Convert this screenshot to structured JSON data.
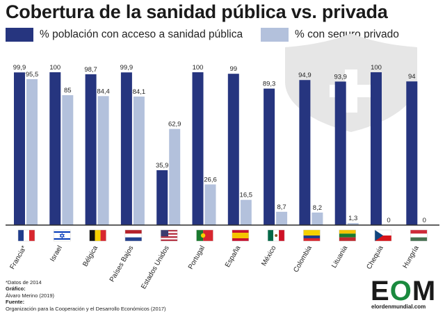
{
  "title": "Cobertura de la sanidad pública vs. privada",
  "legend": {
    "public_label": "% población con acceso a sanidad pública",
    "private_label": "% con seguro privado"
  },
  "colors": {
    "public": "#26357f",
    "private": "#b3c1dc",
    "baseline": "#2b2b2b",
    "shield": "#e6e6e6",
    "brand_green": "#1a8a3e"
  },
  "notes": {
    "footnote": "*Datos de 2014",
    "grafico_label": "Gráfico:",
    "grafico_value": "Álvaro Merino (2019)",
    "fuente_label": "Fuente:",
    "fuente_value": "Organización para la Cooperación y el Desarrollo Económicos (2017)"
  },
  "logo": {
    "text_e": "E",
    "text_o": "O",
    "text_m": "M",
    "url": "elordenmundial.com"
  },
  "background_icon": "shield-plus-icon",
  "chart_data": {
    "type": "bar",
    "categories": [
      "Francia*",
      "Israel",
      "Bélgica",
      "Países Bajos",
      "Estados Unidos",
      "Portugal",
      "España",
      "México",
      "Colombia",
      "Lituania",
      "Chequia",
      "Hungría"
    ],
    "flags": [
      "france-flag-icon",
      "israel-flag-icon",
      "belgium-flag-icon",
      "netherlands-flag-icon",
      "usa-flag-icon",
      "portugal-flag-icon",
      "spain-flag-icon",
      "mexico-flag-icon",
      "colombia-flag-icon",
      "lithuania-flag-icon",
      "czechia-flag-icon",
      "hungary-flag-icon"
    ],
    "series": [
      {
        "name": "% población con acceso a sanidad pública",
        "values": [
          99.9,
          100,
          98.7,
          99.9,
          35.9,
          100,
          99,
          89.3,
          94.9,
          93.9,
          100,
          94
        ],
        "labels": [
          "99,9",
          "100",
          "98,7",
          "99,9",
          "35,9",
          "100",
          "99",
          "89,3",
          "94,9",
          "93,9",
          "100",
          "94"
        ]
      },
      {
        "name": "% con seguro privado",
        "values": [
          95.5,
          85,
          84.4,
          84.1,
          62.9,
          26.6,
          16.5,
          8.7,
          8.2,
          1.3,
          0,
          0
        ],
        "labels": [
          "95,5",
          "85",
          "84,4",
          "84,1",
          "62,9",
          "26,6",
          "16,5",
          "8,7",
          "8,2",
          "1,3",
          "0",
          "0"
        ]
      }
    ],
    "ylim": [
      0,
      100
    ],
    "grid": false,
    "legend_position": "top"
  }
}
